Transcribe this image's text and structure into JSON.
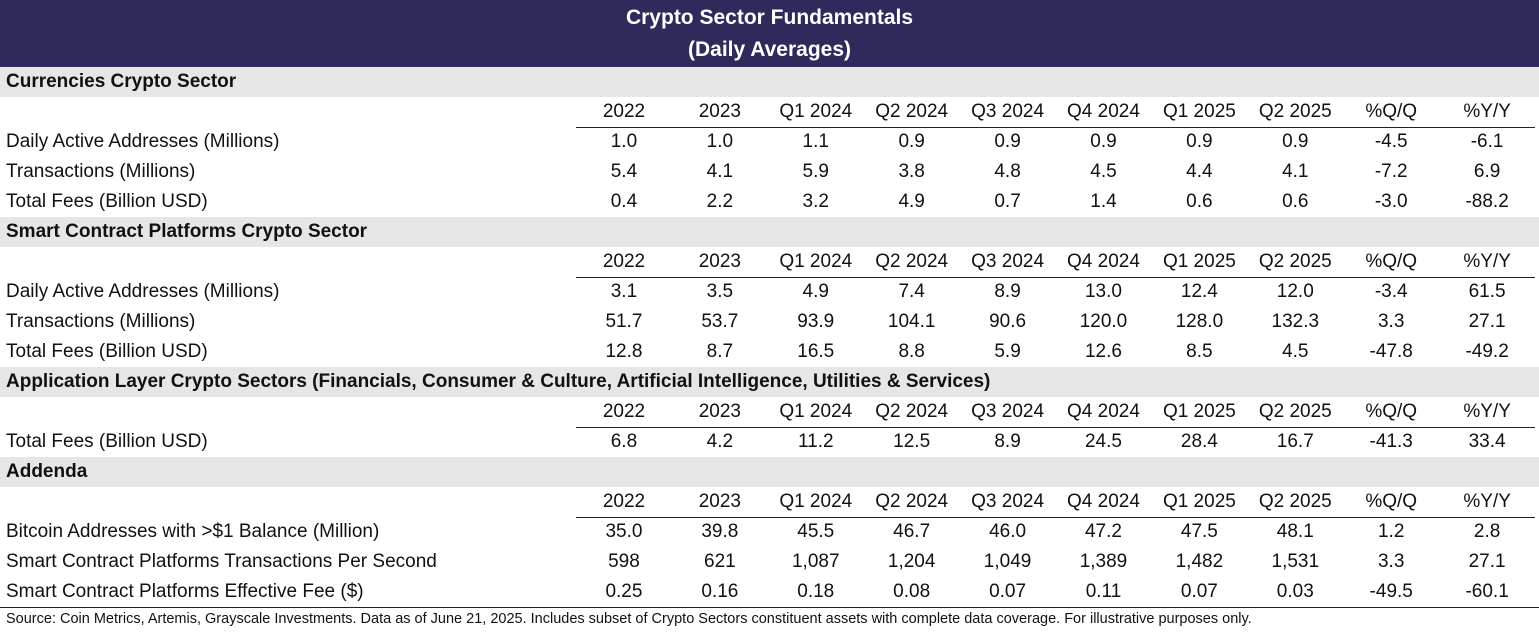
{
  "title": {
    "line1": "Crypto Sector Fundamentals",
    "line2": "(Daily Averages)"
  },
  "sections": [
    {
      "header": "Currencies Crypto Sector",
      "columns": [
        "2022",
        "2023",
        "Q1 2024",
        "Q2 2024",
        "Q3 2024",
        "Q4 2024",
        "Q1 2025",
        "Q2 2025",
        "%Q/Q",
        "%Y/Y"
      ],
      "rows": [
        {
          "label": "Daily Active Addresses (Millions)",
          "values": [
            "1.0",
            "1.0",
            "1.1",
            "0.9",
            "0.9",
            "0.9",
            "0.9",
            "0.9",
            "-4.5",
            "-6.1"
          ]
        },
        {
          "label": "Transactions (Millions)",
          "values": [
            "5.4",
            "4.1",
            "5.9",
            "3.8",
            "4.8",
            "4.5",
            "4.4",
            "4.1",
            "-7.2",
            "6.9"
          ]
        },
        {
          "label": "Total Fees (Billion USD)",
          "values": [
            "0.4",
            "2.2",
            "3.2",
            "4.9",
            "0.7",
            "1.4",
            "0.6",
            "0.6",
            "-3.0",
            "-88.2"
          ]
        }
      ]
    },
    {
      "header": "Smart Contract Platforms Crypto Sector",
      "columns": [
        "2022",
        "2023",
        "Q1 2024",
        "Q2 2024",
        "Q3 2024",
        "Q4 2024",
        "Q1 2025",
        "Q2 2025",
        "%Q/Q",
        "%Y/Y"
      ],
      "rows": [
        {
          "label": "Daily Active Addresses (Millions)",
          "values": [
            "3.1",
            "3.5",
            "4.9",
            "7.4",
            "8.9",
            "13.0",
            "12.4",
            "12.0",
            "-3.4",
            "61.5"
          ]
        },
        {
          "label": "Transactions (Millions)",
          "values": [
            "51.7",
            "53.7",
            "93.9",
            "104.1",
            "90.6",
            "120.0",
            "128.0",
            "132.3",
            "3.3",
            "27.1"
          ]
        },
        {
          "label": "Total Fees (Billion USD)",
          "values": [
            "12.8",
            "8.7",
            "16.5",
            "8.8",
            "5.9",
            "12.6",
            "8.5",
            "4.5",
            "-47.8",
            "-49.2"
          ]
        }
      ]
    },
    {
      "header": "Application Layer Crypto Sectors (Financials, Consumer & Culture, Artificial Intelligence, Utilities & Services)",
      "columns": [
        "2022",
        "2023",
        "Q1 2024",
        "Q2 2024",
        "Q3 2024",
        "Q4 2024",
        "Q1 2025",
        "Q2 2025",
        "%Q/Q",
        "%Y/Y"
      ],
      "rows": [
        {
          "label": "Total Fees (Billion USD)",
          "values": [
            "6.8",
            "4.2",
            "11.2",
            "12.5",
            "8.9",
            "24.5",
            "28.4",
            "16.7",
            "-41.3",
            "33.4"
          ]
        }
      ]
    },
    {
      "header": "Addenda",
      "columns": [
        "2022",
        "2023",
        "Q1 2024",
        "Q2 2024",
        "Q3 2024",
        "Q4 2024",
        "Q1 2025",
        "Q2 2025",
        "%Q/Q",
        "%Y/Y"
      ],
      "rows": [
        {
          "label": "Bitcoin Addresses with >$1 Balance (Million)",
          "values": [
            "35.0",
            "39.8",
            "45.5",
            "46.7",
            "46.0",
            "47.2",
            "47.5",
            "48.1",
            "1.2",
            "2.8"
          ]
        },
        {
          "label": "Smart Contract Platforms Transactions Per Second",
          "values": [
            "598",
            "621",
            "1,087",
            "1,204",
            "1,049",
            "1,389",
            "1,482",
            "1,531",
            "3.3",
            "27.1"
          ]
        },
        {
          "label": "Smart Contract Platforms Effective Fee ($)",
          "values": [
            "0.25",
            "0.16",
            "0.18",
            "0.08",
            "0.07",
            "0.11",
            "0.07",
            "0.03",
            "-49.5",
            "-60.1"
          ]
        }
      ]
    }
  ],
  "source_note": "Source: Coin Metrics, Artemis, Grayscale Investments. Data as of June 21, 2025. Includes subset of Crypto Sectors constituent assets with complete data coverage. For illustrative purposes only.",
  "colors": {
    "title_band": "#2e2a5c",
    "section_band": "#e6e6e6"
  }
}
